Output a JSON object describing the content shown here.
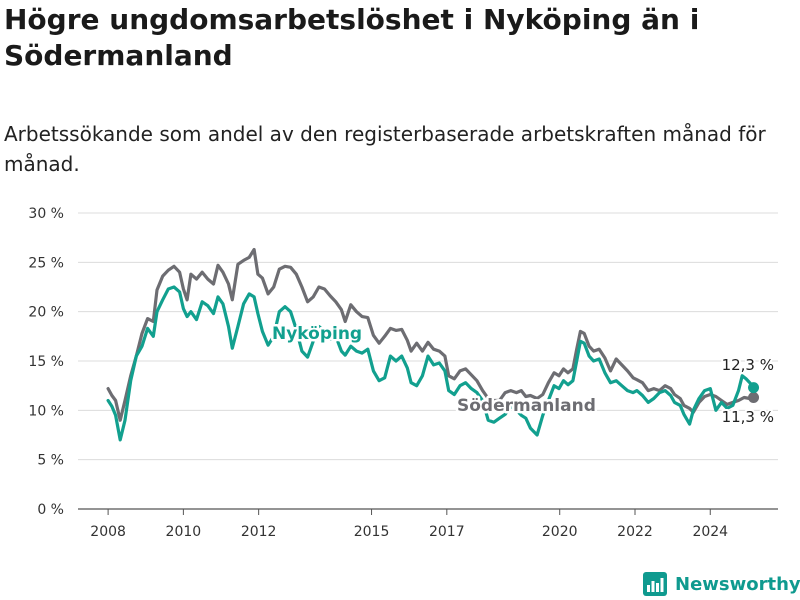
{
  "title": "Högre ungdomsarbetslöshet i Nyköping än i Södermanland",
  "subtitle": "Arbetssökande som andel av den registerbaserade arbetskraften månad för månad.",
  "brand": {
    "name": "Newsworthy",
    "icon": "bar-chart-logo-icon",
    "color": "#0f9a8f"
  },
  "chart_data": {
    "type": "line",
    "x_unit": "year",
    "x_ticks": [
      2008,
      2010,
      2012,
      2015,
      2017,
      2020,
      2022,
      2024
    ],
    "y_ticks": [
      0,
      5,
      10,
      15,
      20,
      25,
      30
    ],
    "y_tick_labels": [
      "0 %",
      "5 %",
      "10 %",
      "15 %",
      "20 %",
      "25 %",
      "30 %"
    ],
    "ylim": [
      0,
      30
    ],
    "xlim": [
      2007.2,
      2025.8
    ],
    "grid": true,
    "legend": "inline labels",
    "series": [
      {
        "name": "Södermanland",
        "color": "#6d6d72",
        "end_label": "11,3 %",
        "points": [
          [
            2008.0,
            12.2
          ],
          [
            2008.1,
            11.5
          ],
          [
            2008.2,
            11.0
          ],
          [
            2008.32,
            9.0
          ],
          [
            2008.45,
            11.0
          ],
          [
            2008.6,
            13.5
          ],
          [
            2008.75,
            15.5
          ],
          [
            2008.9,
            17.8
          ],
          [
            2009.05,
            19.3
          ],
          [
            2009.2,
            19.0
          ],
          [
            2009.3,
            22.2
          ],
          [
            2009.45,
            23.6
          ],
          [
            2009.6,
            24.2
          ],
          [
            2009.75,
            24.6
          ],
          [
            2009.9,
            24.0
          ],
          [
            2010.0,
            22.3
          ],
          [
            2010.1,
            21.2
          ],
          [
            2010.2,
            23.8
          ],
          [
            2010.35,
            23.3
          ],
          [
            2010.5,
            24.0
          ],
          [
            2010.65,
            23.3
          ],
          [
            2010.8,
            22.8
          ],
          [
            2010.92,
            24.7
          ],
          [
            2011.05,
            24.0
          ],
          [
            2011.2,
            22.8
          ],
          [
            2011.3,
            21.2
          ],
          [
            2011.45,
            24.8
          ],
          [
            2011.6,
            25.2
          ],
          [
            2011.75,
            25.5
          ],
          [
            2011.88,
            26.3
          ],
          [
            2011.98,
            23.8
          ],
          [
            2012.1,
            23.4
          ],
          [
            2012.25,
            21.8
          ],
          [
            2012.4,
            22.5
          ],
          [
            2012.55,
            24.3
          ],
          [
            2012.7,
            24.6
          ],
          [
            2012.85,
            24.5
          ],
          [
            2013.0,
            23.8
          ],
          [
            2013.15,
            22.5
          ],
          [
            2013.3,
            21.0
          ],
          [
            2013.45,
            21.5
          ],
          [
            2013.6,
            22.5
          ],
          [
            2013.75,
            22.3
          ],
          [
            2013.9,
            21.6
          ],
          [
            2014.05,
            21.0
          ],
          [
            2014.2,
            20.2
          ],
          [
            2014.3,
            19.0
          ],
          [
            2014.45,
            20.7
          ],
          [
            2014.6,
            20.0
          ],
          [
            2014.75,
            19.5
          ],
          [
            2014.9,
            19.4
          ],
          [
            2015.05,
            17.6
          ],
          [
            2015.2,
            16.8
          ],
          [
            2015.35,
            17.5
          ],
          [
            2015.5,
            18.3
          ],
          [
            2015.65,
            18.1
          ],
          [
            2015.8,
            18.2
          ],
          [
            2015.95,
            17.1
          ],
          [
            2016.05,
            16.0
          ],
          [
            2016.2,
            16.8
          ],
          [
            2016.35,
            16.0
          ],
          [
            2016.5,
            16.9
          ],
          [
            2016.65,
            16.2
          ],
          [
            2016.8,
            16.0
          ],
          [
            2016.95,
            15.5
          ],
          [
            2017.05,
            13.5
          ],
          [
            2017.2,
            13.2
          ],
          [
            2017.35,
            14.0
          ],
          [
            2017.5,
            14.2
          ],
          [
            2017.65,
            13.6
          ],
          [
            2017.8,
            13.0
          ],
          [
            2017.95,
            12.0
          ],
          [
            2018.1,
            11.2
          ],
          [
            2018.25,
            11.0
          ],
          [
            2018.4,
            11.0
          ],
          [
            2018.55,
            11.8
          ],
          [
            2018.7,
            12.0
          ],
          [
            2018.85,
            11.8
          ],
          [
            2018.98,
            12.0
          ],
          [
            2019.1,
            11.4
          ],
          [
            2019.22,
            11.5
          ],
          [
            2019.4,
            11.2
          ],
          [
            2019.55,
            11.6
          ],
          [
            2019.7,
            12.8
          ],
          [
            2019.85,
            13.8
          ],
          [
            2019.98,
            13.5
          ],
          [
            2020.1,
            14.2
          ],
          [
            2020.22,
            13.8
          ],
          [
            2020.35,
            14.2
          ],
          [
            2020.45,
            16.2
          ],
          [
            2020.55,
            18.0
          ],
          [
            2020.65,
            17.8
          ],
          [
            2020.78,
            16.5
          ],
          [
            2020.9,
            16.0
          ],
          [
            2021.05,
            16.2
          ],
          [
            2021.2,
            15.3
          ],
          [
            2021.35,
            14.0
          ],
          [
            2021.5,
            15.2
          ],
          [
            2021.65,
            14.6
          ],
          [
            2021.8,
            14.0
          ],
          [
            2021.95,
            13.3
          ],
          [
            2022.05,
            13.1
          ],
          [
            2022.2,
            12.8
          ],
          [
            2022.35,
            12.0
          ],
          [
            2022.5,
            12.2
          ],
          [
            2022.65,
            12.0
          ],
          [
            2022.8,
            12.5
          ],
          [
            2022.95,
            12.2
          ],
          [
            2023.05,
            11.6
          ],
          [
            2023.2,
            11.2
          ],
          [
            2023.3,
            10.5
          ],
          [
            2023.45,
            10.2
          ],
          [
            2023.55,
            9.8
          ],
          [
            2023.7,
            10.8
          ],
          [
            2023.85,
            11.4
          ],
          [
            2024.0,
            11.6
          ],
          [
            2024.15,
            11.4
          ],
          [
            2024.3,
            11.0
          ],
          [
            2024.45,
            10.6
          ],
          [
            2024.6,
            10.8
          ],
          [
            2024.75,
            11.0
          ],
          [
            2024.9,
            11.3
          ],
          [
            2025.05,
            11.2
          ],
          [
            2025.15,
            11.3
          ]
        ]
      },
      {
        "name": "Nyköping",
        "color": "#12a08f",
        "end_label": "12,3 %",
        "points": [
          [
            2008.0,
            11.0
          ],
          [
            2008.1,
            10.4
          ],
          [
            2008.2,
            9.5
          ],
          [
            2008.32,
            7.0
          ],
          [
            2008.45,
            9.0
          ],
          [
            2008.6,
            13.0
          ],
          [
            2008.75,
            15.5
          ],
          [
            2008.9,
            16.5
          ],
          [
            2009.05,
            18.3
          ],
          [
            2009.2,
            17.5
          ],
          [
            2009.3,
            20.0
          ],
          [
            2009.45,
            21.2
          ],
          [
            2009.6,
            22.3
          ],
          [
            2009.75,
            22.5
          ],
          [
            2009.9,
            22.0
          ],
          [
            2010.0,
            20.3
          ],
          [
            2010.1,
            19.5
          ],
          [
            2010.2,
            20.0
          ],
          [
            2010.35,
            19.2
          ],
          [
            2010.5,
            21.0
          ],
          [
            2010.65,
            20.6
          ],
          [
            2010.8,
            19.8
          ],
          [
            2010.92,
            21.5
          ],
          [
            2011.05,
            20.8
          ],
          [
            2011.2,
            18.5
          ],
          [
            2011.3,
            16.3
          ],
          [
            2011.45,
            18.5
          ],
          [
            2011.6,
            20.8
          ],
          [
            2011.75,
            21.8
          ],
          [
            2011.88,
            21.5
          ],
          [
            2011.98,
            19.8
          ],
          [
            2012.1,
            18.0
          ],
          [
            2012.25,
            16.6
          ],
          [
            2012.4,
            17.5
          ],
          [
            2012.55,
            20.0
          ],
          [
            2012.7,
            20.5
          ],
          [
            2012.85,
            20.0
          ],
          [
            2013.0,
            18.2
          ],
          [
            2013.15,
            16.0
          ],
          [
            2013.3,
            15.4
          ],
          [
            2013.45,
            17.0
          ],
          [
            2013.6,
            18.5
          ],
          [
            2013.75,
            18.0
          ],
          [
            2013.9,
            17.2
          ],
          [
            2014.05,
            17.5
          ],
          [
            2014.2,
            16.0
          ],
          [
            2014.3,
            15.6
          ],
          [
            2014.45,
            16.5
          ],
          [
            2014.6,
            16.0
          ],
          [
            2014.75,
            15.8
          ],
          [
            2014.9,
            16.2
          ],
          [
            2015.05,
            14.0
          ],
          [
            2015.2,
            13.0
          ],
          [
            2015.35,
            13.3
          ],
          [
            2015.5,
            15.5
          ],
          [
            2015.65,
            15.0
          ],
          [
            2015.8,
            15.5
          ],
          [
            2015.95,
            14.3
          ],
          [
            2016.05,
            12.8
          ],
          [
            2016.2,
            12.5
          ],
          [
            2016.35,
            13.5
          ],
          [
            2016.5,
            15.5
          ],
          [
            2016.65,
            14.6
          ],
          [
            2016.8,
            14.8
          ],
          [
            2016.95,
            14.0
          ],
          [
            2017.05,
            12.0
          ],
          [
            2017.2,
            11.6
          ],
          [
            2017.35,
            12.5
          ],
          [
            2017.5,
            12.8
          ],
          [
            2017.65,
            12.2
          ],
          [
            2017.8,
            11.8
          ],
          [
            2017.95,
            11.0
          ],
          [
            2018.1,
            9.0
          ],
          [
            2018.25,
            8.8
          ],
          [
            2018.4,
            9.2
          ],
          [
            2018.55,
            9.6
          ],
          [
            2018.7,
            10.4
          ],
          [
            2018.85,
            10.0
          ],
          [
            2018.98,
            9.5
          ],
          [
            2019.1,
            9.2
          ],
          [
            2019.22,
            8.2
          ],
          [
            2019.4,
            7.5
          ],
          [
            2019.55,
            9.5
          ],
          [
            2019.7,
            11.0
          ],
          [
            2019.85,
            12.5
          ],
          [
            2019.98,
            12.2
          ],
          [
            2020.1,
            13.0
          ],
          [
            2020.22,
            12.6
          ],
          [
            2020.35,
            13.0
          ],
          [
            2020.45,
            15.0
          ],
          [
            2020.55,
            17.0
          ],
          [
            2020.65,
            16.8
          ],
          [
            2020.78,
            15.5
          ],
          [
            2020.9,
            15.0
          ],
          [
            2021.05,
            15.2
          ],
          [
            2021.2,
            13.8
          ],
          [
            2021.35,
            12.8
          ],
          [
            2021.5,
            13.0
          ],
          [
            2021.65,
            12.5
          ],
          [
            2021.8,
            12.0
          ],
          [
            2021.95,
            11.8
          ],
          [
            2022.05,
            12.0
          ],
          [
            2022.2,
            11.5
          ],
          [
            2022.35,
            10.8
          ],
          [
            2022.5,
            11.2
          ],
          [
            2022.65,
            11.8
          ],
          [
            2022.8,
            12.0
          ],
          [
            2022.95,
            11.5
          ],
          [
            2023.05,
            10.8
          ],
          [
            2023.2,
            10.5
          ],
          [
            2023.3,
            9.6
          ],
          [
            2023.45,
            8.6
          ],
          [
            2023.55,
            10.0
          ],
          [
            2023.7,
            11.2
          ],
          [
            2023.85,
            12.0
          ],
          [
            2024.0,
            12.2
          ],
          [
            2024.15,
            10.0
          ],
          [
            2024.3,
            10.8
          ],
          [
            2024.45,
            10.2
          ],
          [
            2024.6,
            10.5
          ],
          [
            2024.75,
            12.0
          ],
          [
            2024.85,
            13.5
          ],
          [
            2024.95,
            13.2
          ],
          [
            2025.05,
            12.8
          ],
          [
            2025.15,
            12.3
          ]
        ]
      }
    ]
  }
}
